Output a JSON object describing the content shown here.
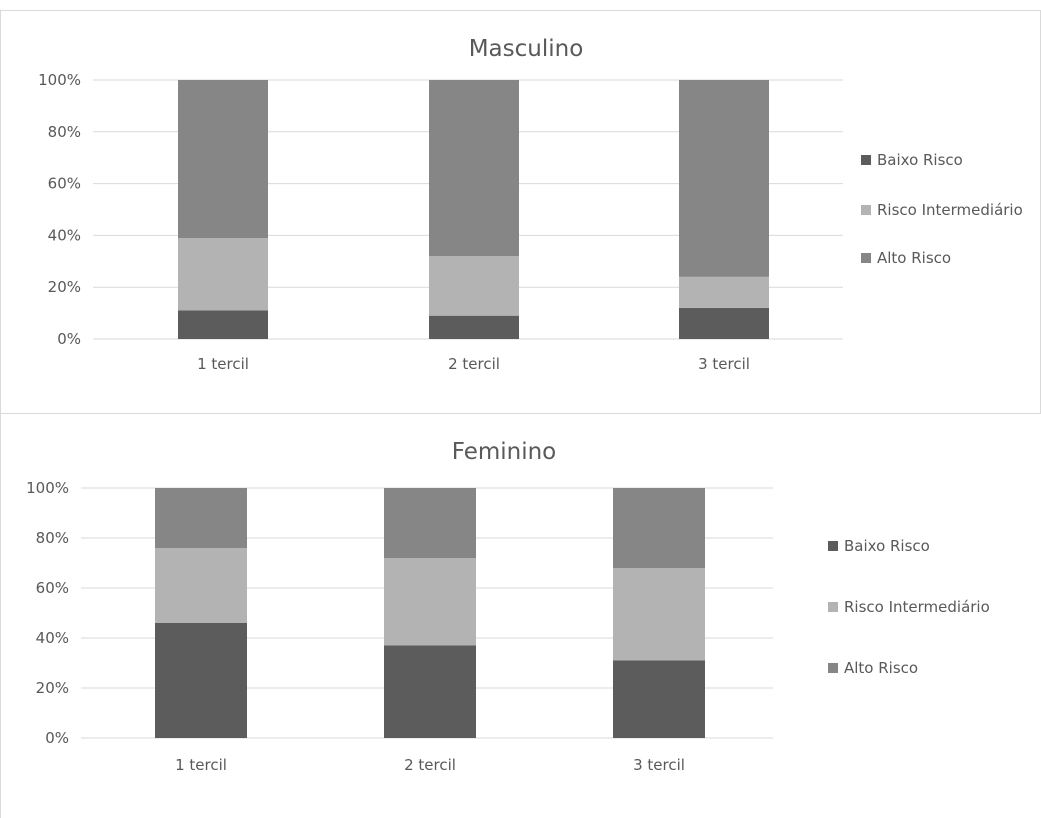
{
  "colors": {
    "baixo": "#5c5c5c",
    "intermediario": "#b3b3b3",
    "alto": "#868686",
    "grid": "#d9d9d9",
    "text": "#595959"
  },
  "chart_data": [
    {
      "type": "bar",
      "stacked": true,
      "percent": true,
      "title": "Masculino",
      "categories": [
        "1 tercil",
        "2 tercil",
        "3 tercil"
      ],
      "series": [
        {
          "name": "Baixo Risco",
          "values": [
            11,
            9,
            12
          ]
        },
        {
          "name": "Risco Intermediário",
          "values": [
            28,
            23,
            12
          ]
        },
        {
          "name": "Alto Risco",
          "values": [
            61,
            68,
            76
          ]
        }
      ],
      "ylim": [
        0,
        100
      ],
      "yticks": [
        "0%",
        "20%",
        "40%",
        "60%",
        "80%",
        "100%"
      ],
      "grid": true,
      "legend": "right"
    },
    {
      "type": "bar",
      "stacked": true,
      "percent": true,
      "title": "Feminino",
      "categories": [
        "1 tercil",
        "2 tercil",
        "3 tercil"
      ],
      "series": [
        {
          "name": "Baixo Risco",
          "values": [
            46,
            37,
            31
          ]
        },
        {
          "name": "Risco Intermediário",
          "values": [
            30,
            35,
            37
          ]
        },
        {
          "name": "Alto Risco",
          "values": [
            24,
            28,
            32
          ]
        }
      ],
      "ylim": [
        0,
        100
      ],
      "yticks": [
        "0%",
        "20%",
        "40%",
        "60%",
        "80%",
        "100%"
      ],
      "grid": true,
      "legend": "right"
    }
  ]
}
